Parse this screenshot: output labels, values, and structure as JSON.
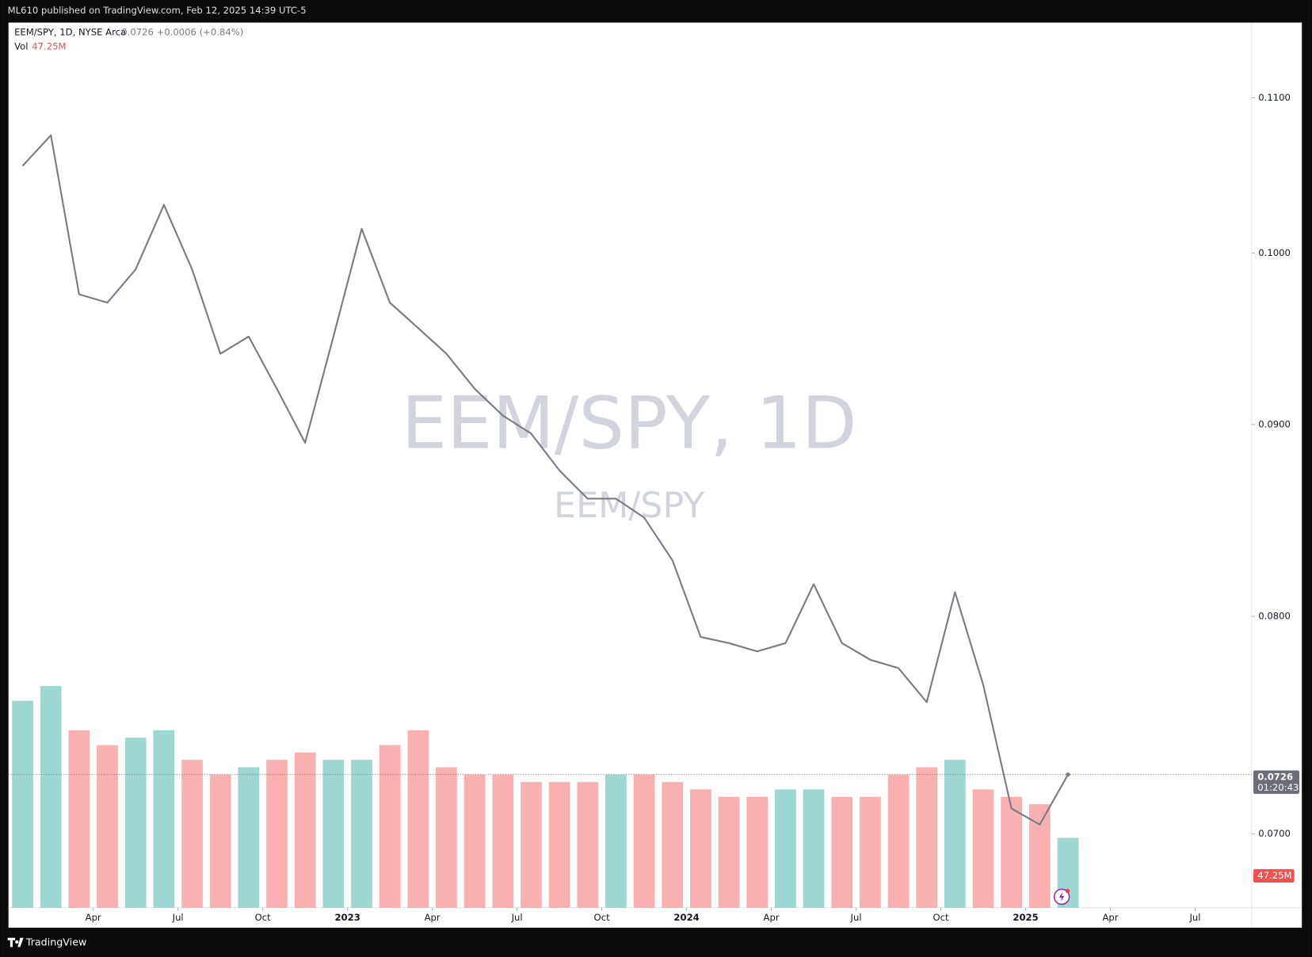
{
  "header": {
    "publisher": "ML610 published on TradingView.com, Feb 12, 2025 14:39 UTC-5"
  },
  "chart_data": {
    "type": "line",
    "symbol": "EEM/SPY, 1D, NYSE Arca",
    "last": "0.0726",
    "change": "+0.0006 (+0.84%)",
    "volume_title": "Vol",
    "volume_last": "47.25M",
    "watermark": "EEM/SPY, 1D",
    "countdown": "01:20:43",
    "x": [
      "2022-01",
      "2022-02",
      "2022-03",
      "2022-04",
      "2022-05",
      "2022-06",
      "2022-07",
      "2022-08",
      "2022-09",
      "2022-10",
      "2022-11",
      "2022-12",
      "2023-01",
      "2023-02",
      "2023-03",
      "2023-04",
      "2023-05",
      "2023-06",
      "2023-07",
      "2023-08",
      "2023-09",
      "2023-10",
      "2023-11",
      "2023-12",
      "2024-01",
      "2024-02",
      "2024-03",
      "2024-04",
      "2024-05",
      "2024-06",
      "2024-07",
      "2024-08",
      "2024-09",
      "2024-10",
      "2024-11",
      "2024-12",
      "2025-01",
      "2025-02"
    ],
    "series": [
      {
        "name": "EEM/SPY",
        "color": "#787b86",
        "values": [
          0.1055,
          0.1075,
          0.0975,
          0.097,
          0.099,
          0.103,
          0.099,
          0.094,
          0.095,
          0.092,
          0.089,
          0.095,
          0.1015,
          0.097,
          0.0955,
          0.094,
          0.092,
          0.0905,
          0.0895,
          0.0875,
          0.086,
          0.086,
          0.085,
          0.0828,
          0.079,
          0.0787,
          0.0783,
          0.0787,
          0.0816,
          0.0787,
          0.0779,
          0.0775,
          0.0759,
          0.0812,
          0.0767,
          0.0711,
          0.0704,
          0.0726
        ]
      }
    ],
    "volume": {
      "up_color": "#26a69a",
      "down_color": "#ef5350",
      "values": [
        140,
        150,
        120,
        110,
        115,
        120,
        100,
        90,
        95,
        100,
        105,
        100,
        100,
        110,
        120,
        95,
        90,
        90,
        85,
        85,
        85,
        90,
        90,
        85,
        80,
        75,
        75,
        80,
        80,
        75,
        75,
        90,
        95,
        100,
        80,
        75,
        70,
        47.25
      ]
    },
    "xlim": [
      "2022-01",
      "2025-09"
    ],
    "xticks": [
      {
        "value": "2022-04",
        "label": "Apr"
      },
      {
        "value": "2022-07",
        "label": "Jul"
      },
      {
        "value": "2022-10",
        "label": "Oct"
      },
      {
        "value": "2023-01",
        "label": "2023"
      },
      {
        "value": "2023-04",
        "label": "Apr"
      },
      {
        "value": "2023-07",
        "label": "Jul"
      },
      {
        "value": "2023-10",
        "label": "Oct"
      },
      {
        "value": "2024-01",
        "label": "2024"
      },
      {
        "value": "2024-04",
        "label": "Apr"
      },
      {
        "value": "2024-07",
        "label": "Jul"
      },
      {
        "value": "2024-10",
        "label": "Oct"
      },
      {
        "value": "2025-01",
        "label": "2025"
      },
      {
        "value": "2025-04",
        "label": "Apr"
      },
      {
        "value": "2025-07",
        "label": "Jul"
      }
    ],
    "ylim": [
      0.0669,
      0.1152
    ],
    "yticks": [
      {
        "value": 0.11,
        "label": "0.1100"
      },
      {
        "value": 0.1,
        "label": "0.1000"
      },
      {
        "value": 0.09,
        "label": "0.0900"
      },
      {
        "value": 0.08,
        "label": "0.0800"
      },
      {
        "value": 0.07,
        "label": "0.0700"
      }
    ],
    "log_scale": true
  },
  "footer": {
    "brand": "TradingView"
  }
}
